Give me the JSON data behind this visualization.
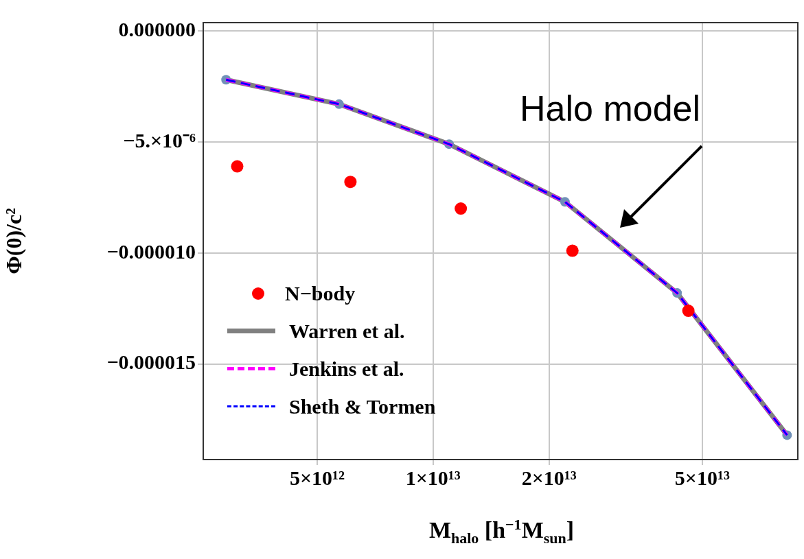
{
  "chart_data": {
    "type": "line",
    "xlabel": "M$_{halo}$ [h$^{−1}$M$_{sun}$]",
    "ylabel": "Φ(0)/c²",
    "log": "x",
    "xlim": [
      2530000000000.0,
      88500000000000.0
    ],
    "xticks": [
      {
        "value": 5000000000000.0,
        "label": "5×10¹²"
      },
      {
        "value": 10000000000000.0,
        "label": "1×10¹³"
      },
      {
        "value": 20000000000000.0,
        "label": "2×10¹³"
      },
      {
        "value": 50000000000000.0,
        "label": "5×10¹³"
      }
    ],
    "ylim": [
      -1.93e-05,
      3.7e-07
    ],
    "yticks": [
      {
        "value": 0,
        "label": "0.000000"
      },
      {
        "value": -5e-06,
        "label": "−5.×10⁻⁶"
      },
      {
        "value": -1e-05,
        "label": "−0.000010"
      },
      {
        "value": -1.5e-05,
        "label": "−0.000015"
      }
    ],
    "grid": true,
    "legend": "bottom left",
    "annotations": [
      "Halo model"
    ],
    "series": [
      {
        "name": "N−body",
        "type": "scatter",
        "marker": "circle",
        "color": "#ff0000",
        "x": [
          3100000000000.0,
          6100000000000.0,
          11800000000000.0,
          23000000000000.0,
          46000000000000.0
        ],
        "values": [
          -6.1e-06,
          -6.8e-06,
          -8e-06,
          -9.9e-06,
          -1.26e-05
        ]
      },
      {
        "name": "Warren et al.",
        "line_style": "solid",
        "marker": "circle",
        "color": "#808080",
        "x": [
          2900000000000.0,
          5700000000000.0,
          11000000000000.0,
          22000000000000.0,
          43000000000000.0,
          83000000000000.0
        ],
        "values": [
          -2.2e-06,
          -3.3e-06,
          -5.1e-06,
          -7.7e-06,
          -1.18e-05,
          -1.82e-05
        ]
      },
      {
        "name": "Jenkins et al.",
        "line_style": "dashed",
        "color": "#ff00ff",
        "x": [
          2900000000000.0,
          5700000000000.0,
          11000000000000.0,
          22000000000000.0,
          43000000000000.0,
          83000000000000.0
        ],
        "values": [
          -2.2e-06,
          -3.3e-06,
          -5.1e-06,
          -7.7e-06,
          -1.18e-05,
          -1.82e-05
        ]
      },
      {
        "name": "Sheth & Tormen",
        "line_style": "dashed",
        "color": "#0000ff",
        "x": [
          2900000000000.0,
          5700000000000.0,
          11000000000000.0,
          22000000000000.0,
          43000000000000.0,
          83000000000000.0
        ],
        "values": [
          -2.2e-06,
          -3.3e-06,
          -5.1e-06,
          -7.7e-06,
          -1.18e-05,
          -1.82e-05
        ]
      }
    ]
  }
}
